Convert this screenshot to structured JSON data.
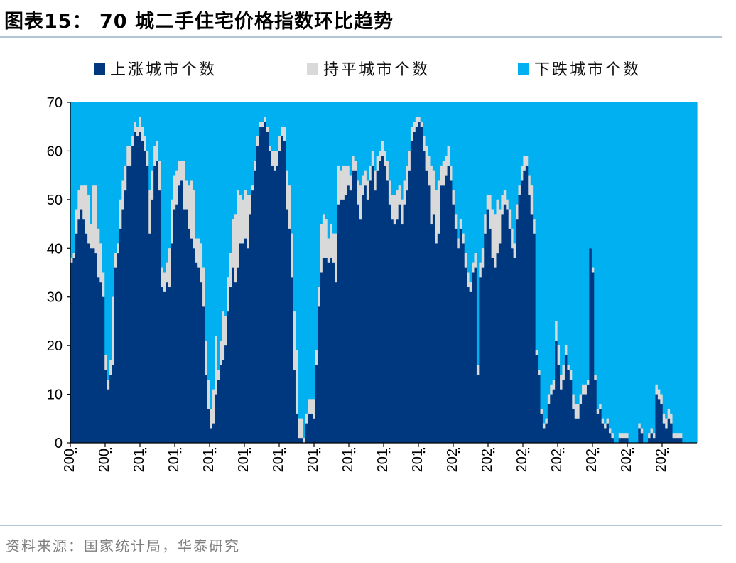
{
  "header": {
    "title": "图表15：  70 城二手住宅价格指数环比趋势"
  },
  "footer": {
    "source": "资料来源：国家统计局，华泰研究"
  },
  "colors": {
    "up": "#003880",
    "flat": "#d9d9d9",
    "down": "#00b0f0",
    "rule": "#b4c5d3"
  },
  "chart_data": {
    "type": "bar",
    "stacked": true,
    "total": 70,
    "ylim": [
      0,
      70
    ],
    "yticks": [
      0,
      10,
      20,
      30,
      40,
      50,
      60,
      70
    ],
    "xlabels": [
      "200",
      "200",
      "201",
      "201",
      "201",
      "201",
      "201",
      "201",
      "201",
      "201",
      "201",
      "202",
      "202",
      "202",
      "202",
      "202",
      "202",
      "202"
    ],
    "legend": [
      "上涨城市个数",
      "持平城市个数",
      "下跌城市个数"
    ],
    "series": [
      {
        "name": "上涨城市个数",
        "values": [
          37,
          38,
          43,
          46,
          48,
          46,
          43,
          41,
          40,
          40,
          39,
          34,
          33,
          30,
          15,
          11,
          14,
          16,
          36,
          39,
          44,
          48,
          52,
          57,
          57,
          61,
          64,
          63,
          64,
          62,
          60,
          57,
          43,
          50,
          57,
          58,
          52,
          32,
          31,
          33,
          32,
          41,
          48,
          49,
          53,
          54,
          48,
          48,
          44,
          42,
          40,
          37,
          36,
          33,
          28,
          14,
          7,
          3,
          4,
          10,
          13,
          16,
          17,
          20,
          27,
          32,
          36,
          33,
          36,
          41,
          41,
          42,
          40,
          47,
          52,
          56,
          61,
          65,
          65,
          66,
          64,
          60,
          57,
          56,
          57,
          60,
          63,
          62,
          48,
          44,
          34,
          15,
          6,
          1,
          1,
          0,
          4,
          6,
          6,
          5,
          16,
          28,
          35,
          38,
          38,
          37,
          38,
          37,
          33,
          49,
          50,
          50,
          51,
          53,
          52,
          56,
          56,
          49,
          46,
          51,
          53,
          50,
          54,
          57,
          52,
          56,
          58,
          59,
          57,
          54,
          49,
          46,
          45,
          46,
          49,
          45,
          49,
          52,
          56,
          62,
          64,
          65,
          66,
          65,
          60,
          56,
          53,
          45,
          47,
          41,
          43,
          53,
          53,
          55,
          57,
          54,
          49,
          44,
          40,
          44,
          41,
          36,
          32,
          31,
          35,
          36,
          14,
          34,
          36,
          43,
          48,
          44,
          38,
          36,
          39,
          41,
          47,
          49,
          48,
          44,
          40,
          38,
          46,
          51,
          54,
          56,
          57,
          51,
          47,
          43,
          18,
          14,
          6,
          3,
          4,
          8,
          10,
          11,
          21,
          16,
          11,
          13,
          18,
          15,
          13,
          7,
          5,
          5,
          8,
          10,
          10,
          12,
          40,
          35,
          13,
          6,
          7,
          4,
          3,
          4,
          2,
          1,
          0,
          0,
          1,
          1,
          1,
          1,
          0,
          0,
          0,
          0,
          3,
          2,
          0,
          0,
          1,
          2,
          1,
          10,
          9,
          8,
          4,
          3,
          5,
          4,
          1,
          1,
          1,
          1,
          0,
          0,
          0,
          0,
          0,
          0
        ]
      },
      {
        "name": "持平城市个数",
        "values": [
          1,
          1,
          5,
          6,
          5,
          7,
          10,
          10,
          5,
          13,
          14,
          10,
          8,
          5,
          3,
          2,
          3,
          14,
          3,
          2,
          6,
          6,
          5,
          4,
          4,
          2,
          2,
          2,
          3,
          3,
          3,
          3,
          9,
          6,
          4,
          4,
          6,
          4,
          4,
          4,
          8,
          9,
          7,
          7,
          5,
          4,
          10,
          6,
          9,
          12,
          12,
          5,
          6,
          8,
          8,
          7,
          6,
          4,
          7,
          12,
          2,
          5,
          10,
          6,
          7,
          7,
          10,
          14,
          16,
          10,
          9,
          10,
          11,
          4,
          1,
          2,
          2,
          1,
          1,
          1,
          1,
          1,
          3,
          4,
          3,
          3,
          2,
          3,
          8,
          9,
          9,
          12,
          13,
          4,
          4,
          1,
          2,
          3,
          3,
          4,
          3,
          4,
          10,
          9,
          8,
          5,
          7,
          6,
          10,
          8,
          6,
          7,
          6,
          4,
          3,
          3,
          2,
          5,
          7,
          4,
          3,
          4,
          3,
          3,
          4,
          3,
          2,
          3,
          3,
          4,
          5,
          5,
          6,
          6,
          4,
          5,
          5,
          5,
          4,
          3,
          2,
          2,
          1,
          1,
          3,
          5,
          6,
          12,
          9,
          11,
          11,
          4,
          5,
          4,
          4,
          3,
          3,
          3,
          2,
          2,
          2,
          3,
          3,
          2,
          2,
          3,
          2,
          3,
          4,
          4,
          3,
          7,
          10,
          11,
          11,
          7,
          4,
          3,
          2,
          4,
          4,
          3,
          3,
          2,
          3,
          3,
          2,
          4,
          6,
          3,
          1,
          1,
          1,
          1,
          1,
          2,
          2,
          2,
          4,
          4,
          3,
          3,
          2,
          1,
          2,
          3,
          3,
          3,
          2,
          2,
          2,
          1,
          0,
          1,
          1,
          1,
          1,
          1,
          1,
          1,
          1,
          1,
          0,
          0,
          1,
          1,
          1,
          1,
          0,
          0,
          0,
          0,
          1,
          1,
          0,
          0,
          1,
          1,
          1,
          2,
          2,
          2,
          2,
          2,
          2,
          2,
          1,
          1,
          1,
          1,
          0,
          0,
          0,
          0,
          0,
          0
        ]
      }
    ]
  }
}
